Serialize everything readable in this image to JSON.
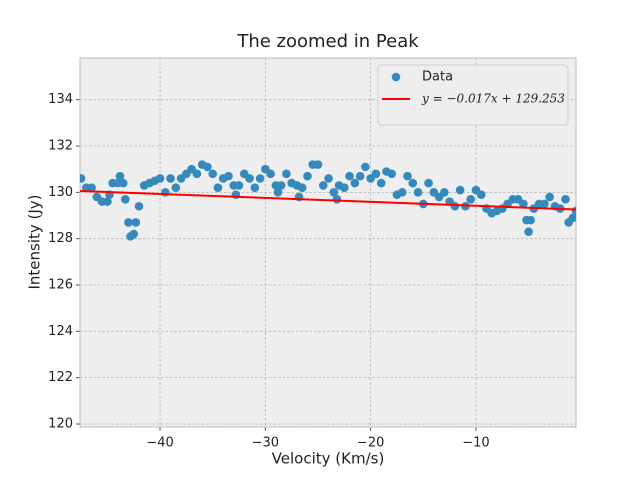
{
  "chart_data": {
    "type": "scatter",
    "title": "The zoomed in Peak",
    "x_label": "Velocity (Km/s)",
    "y_label": "Intensity (Jy)",
    "xlim": [
      -47.6,
      -0.5
    ],
    "ylim": [
      119.87,
      135.8
    ],
    "xticks": [
      {
        "value": -40,
        "label": "−40"
      },
      {
        "value": -30,
        "label": "−30"
      },
      {
        "value": -20,
        "label": "−20"
      },
      {
        "value": -10,
        "label": "−10"
      }
    ],
    "yticks": [
      120,
      122,
      124,
      126,
      128,
      130,
      132,
      134
    ],
    "grid": true,
    "legend": "upper right",
    "series": [
      {
        "name": "Data",
        "type": "scatter",
        "color": "#348abd",
        "x": [
          -47.5,
          -47,
          -46.5,
          -46,
          -45.5,
          -45,
          -44.8,
          -44.5,
          -44,
          -43.8,
          -43.5,
          -43.3,
          -43,
          -42.8,
          -42.5,
          -42.3,
          -42,
          -41.5,
          -41,
          -40.5,
          -40,
          -39.5,
          -39,
          -38.5,
          -38,
          -37.5,
          -37,
          -36.5,
          -36,
          -35.5,
          -35,
          -34.5,
          -34,
          -33.5,
          -33,
          -32.8,
          -32.5,
          -32,
          -31.5,
          -31,
          -30.5,
          -30,
          -29.5,
          -29,
          -28.8,
          -28.5,
          -28,
          -27.5,
          -27,
          -26.8,
          -26.5,
          -26,
          -25.5,
          -25,
          -24.5,
          -24,
          -23.5,
          -23.2,
          -23,
          -22.5,
          -22,
          -21.5,
          -21,
          -20.5,
          -20,
          -19.5,
          -19,
          -18.5,
          -18,
          -17.5,
          -17,
          -16.5,
          -16,
          -15.5,
          -15,
          -14.5,
          -14,
          -13.5,
          -13,
          -12.5,
          -12,
          -11.5,
          -11,
          -10.5,
          -10,
          -9.5,
          -9,
          -8.5,
          -8,
          -7.5,
          -7,
          -6.5,
          -6,
          -5.5,
          -5.2,
          -5,
          -4.8,
          -4.5,
          -4,
          -3.5,
          -3,
          -2.5,
          -2,
          -1.5,
          -1.2,
          -0.8,
          -0.5
        ],
        "values": [
          130.6,
          130.2,
          130.2,
          129.8,
          129.6,
          129.6,
          129.9,
          130.4,
          130.4,
          130.7,
          130.4,
          129.7,
          128.7,
          128.1,
          128.2,
          128.7,
          129.4,
          130.3,
          130.4,
          130.5,
          130.6,
          130.0,
          130.6,
          130.2,
          130.6,
          130.8,
          131.0,
          130.8,
          131.2,
          131.1,
          130.8,
          130.2,
          130.6,
          130.7,
          130.3,
          129.9,
          130.3,
          130.8,
          130.6,
          130.2,
          130.6,
          131.0,
          130.8,
          130.3,
          130.0,
          130.3,
          130.8,
          130.4,
          130.3,
          129.8,
          130.2,
          130.7,
          131.2,
          131.2,
          130.3,
          130.6,
          130.0,
          129.7,
          130.3,
          130.2,
          130.7,
          130.4,
          130.7,
          131.1,
          130.6,
          130.8,
          130.4,
          130.9,
          130.8,
          129.9,
          130.0,
          130.7,
          130.4,
          130.0,
          129.5,
          130.4,
          130.0,
          129.8,
          130.0,
          129.6,
          129.4,
          130.1,
          129.4,
          129.7,
          130.1,
          129.9,
          129.3,
          129.1,
          129.2,
          129.3,
          129.5,
          129.7,
          129.7,
          129.5,
          128.8,
          128.3,
          128.8,
          129.3,
          129.5,
          129.5,
          129.8,
          129.4,
          129.3,
          129.7,
          128.7,
          128.9,
          129.2
        ]
      },
      {
        "name": "y = −0.017x + 129.253",
        "type": "line",
        "color": "#ff0000",
        "x": [
          -47.6,
          -0.5
        ],
        "values": [
          130.06,
          129.26
        ]
      }
    ]
  }
}
